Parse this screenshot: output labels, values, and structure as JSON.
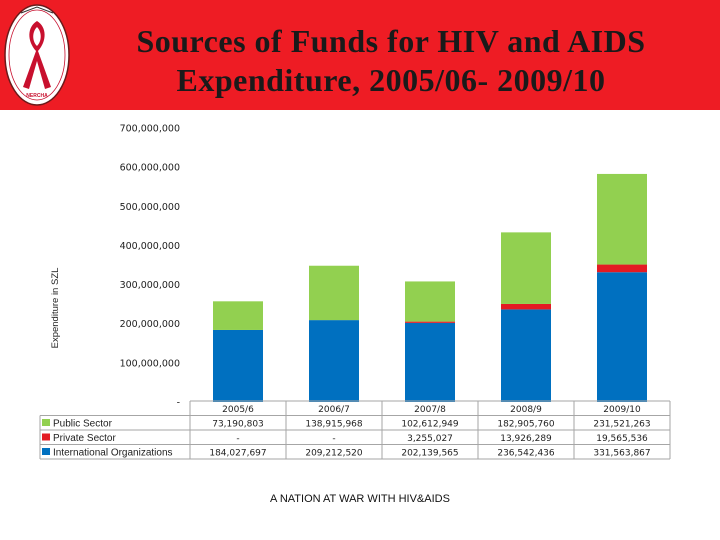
{
  "page_title_line1": "Sources of Funds for HIV and AIDS",
  "page_title_line2": "Expenditure, 2005/06- 2009/10",
  "logo_text": "NERCHA",
  "footer": "A NATION AT WAR WITH HIV&AIDS",
  "chart_data": {
    "type": "bar",
    "stacked": true,
    "ylabel": "Expenditure in SZL",
    "ylim": [
      0,
      700000000
    ],
    "yticks": [
      0,
      100000000,
      200000000,
      300000000,
      400000000,
      500000000,
      600000000,
      700000000
    ],
    "ytick_labels": [
      "-",
      "100,000,000",
      "200,000,000",
      "300,000,000",
      "400,000,000",
      "500,000,000",
      "600,000,000",
      "700,000,000"
    ],
    "grid": false,
    "legend": "data-table-left",
    "categories": [
      "2005/6",
      "2006/7",
      "2007/8",
      "2008/9",
      "2009/10"
    ],
    "series": [
      {
        "name": "Public Sector",
        "color": "#92d050",
        "values": [
          73190803,
          138915968,
          102612949,
          182905760,
          231521263
        ],
        "labels": [
          "73,190,803",
          "138,915,968",
          "102,612,949",
          "182,905,760",
          "231,521,263"
        ]
      },
      {
        "name": "Private Sector",
        "color": "#e31b23",
        "values": [
          0,
          0,
          3255027,
          13926289,
          19565536
        ],
        "labels": [
          "-",
          "-",
          "3,255,027",
          "13,926,289",
          "19,565,536"
        ]
      },
      {
        "name": "International Organizations",
        "color": "#0070c0",
        "values": [
          184027697,
          209212520,
          202139565,
          236542436,
          331563867
        ],
        "labels": [
          "184,027,697",
          "209,212,520",
          "202,139,565",
          "236,542,436",
          "331,563,867"
        ]
      }
    ]
  }
}
